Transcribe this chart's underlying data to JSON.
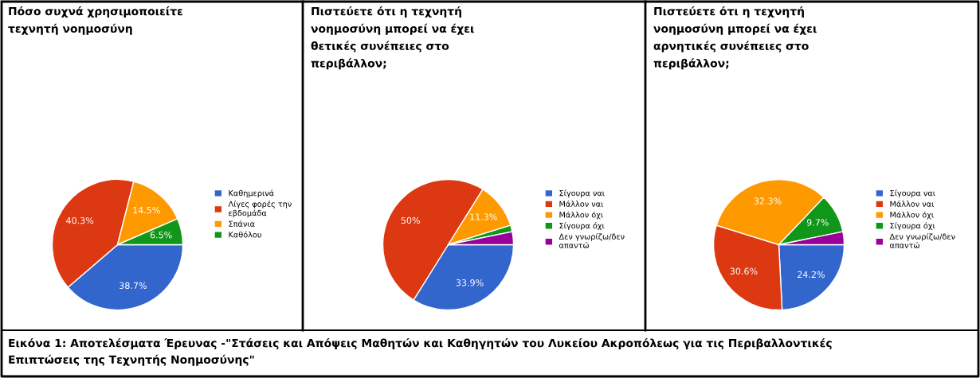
{
  "chart_data": [
    {
      "type": "pie",
      "title": "Πόσο συχνά χρησιμοποιείτε\nτεχνητή νοημοσύνη",
      "categories": [
        "Καθημερινά",
        "Λίγες φορές την\nεβδομάδα",
        "Σπάνια",
        "Καθόλου"
      ],
      "values": [
        38.7,
        40.3,
        14.5,
        6.5
      ],
      "colors": [
        "#3366cc",
        "#dc3912",
        "#ff9900",
        "#109618"
      ],
      "value_labels": [
        "38.7%",
        "40.3%",
        "14.5%",
        "6.5%"
      ],
      "legend": "right",
      "annotations": [
        "Εικόνα 1: Αποτελέσματα Έρευνας -\"Στάσεις και Απόψεις Μαθητών και Καθηγητών του Λυκείου Ακροπόλεως για τις Περιβαλλοντικές\nΕπιπτώσεις της Τεχνητής Νοημοσύνης\""
      ]
    },
    {
      "type": "pie",
      "title": "Πιστεύετε ότι η τεχνητή\nνοημοσύνη μπορεί να έχει\nθετικές συνέπειες στο\nπεριβάλλον;",
      "categories": [
        "Σίγουρα ναι",
        "Μάλλον ναι",
        "Μάλλον όχι",
        "Σίγουρα όχι",
        "Δεν γνωρίζω/δεν\nαπαντώ"
      ],
      "values": [
        33.9,
        50,
        11.3,
        1.6,
        3.2
      ],
      "colors": [
        "#3366cc",
        "#dc3912",
        "#ff9900",
        "#109618",
        "#990099"
      ],
      "value_labels": [
        "33.9%",
        "50%",
        "11.3%",
        null,
        null
      ],
      "legend": "right"
    },
    {
      "type": "pie",
      "title": "Πιστεύετε ότι η τεχνητή\nνοημοσύνη μπορεί να έχει\nαρνητικές συνέπειες στο\nπεριβάλλον;",
      "categories": [
        "Σίγουρα ναι",
        "Μάλλον ναι",
        "Μάλλον όχι",
        "Σίγουρα όχι",
        "Δεν γνωρίζω/δεν\nαπαντώ"
      ],
      "values": [
        24.2,
        30.6,
        32.3,
        9.7,
        3.2
      ],
      "colors": [
        "#3366cc",
        "#dc3912",
        "#ff9900",
        "#109618",
        "#990099"
      ],
      "value_labels": [
        "24.2%",
        "30.6%",
        "32.3%",
        "9.7%",
        null
      ],
      "legend": "right"
    }
  ]
}
